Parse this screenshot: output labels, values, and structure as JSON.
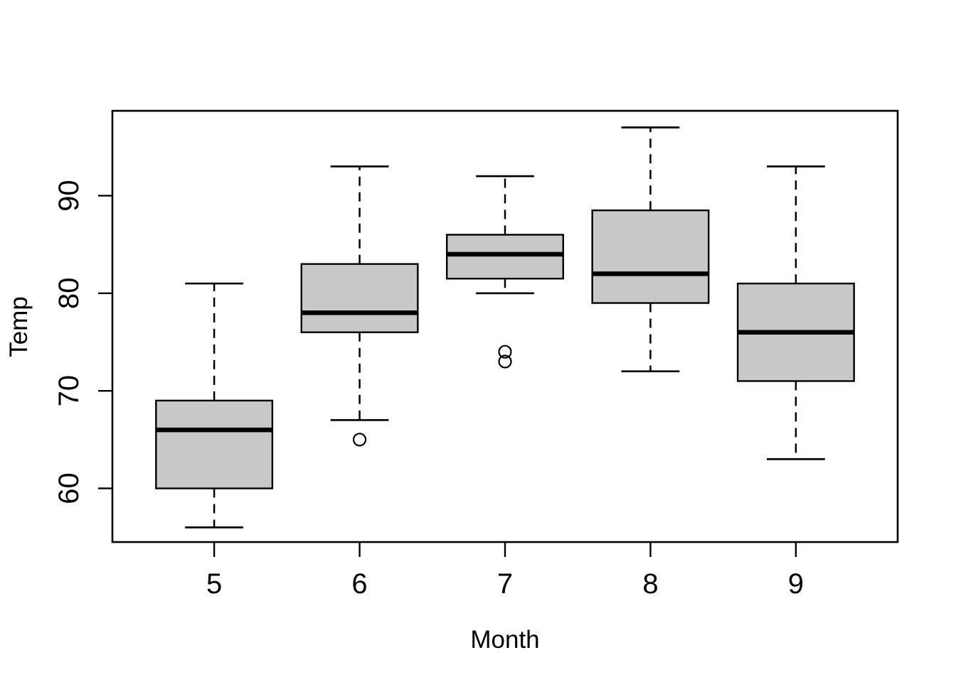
{
  "figure": {
    "background": "#ffffff",
    "box_fill": "#c8c8c8",
    "line_color": "#000000"
  },
  "chart_data": {
    "type": "boxplot",
    "title": "",
    "xlabel": "Month",
    "ylabel": "Temp",
    "categories": [
      "5",
      "6",
      "7",
      "8",
      "9"
    ],
    "y_ticks": [
      60,
      70,
      80,
      90
    ],
    "ylim": [
      54.5,
      98.7
    ],
    "grid": false,
    "legend": false,
    "series": [
      {
        "category": "5",
        "lower_whisker": 56,
        "q1": 60,
        "median": 66,
        "q3": 69,
        "upper_whisker": 81,
        "outliers": []
      },
      {
        "category": "6",
        "lower_whisker": 67,
        "q1": 76,
        "median": 78,
        "q3": 83,
        "upper_whisker": 93,
        "outliers": [
          65
        ]
      },
      {
        "category": "7",
        "lower_whisker": 80,
        "q1": 81.5,
        "median": 84,
        "q3": 86,
        "upper_whisker": 92,
        "outliers": [
          73,
          74
        ]
      },
      {
        "category": "8",
        "lower_whisker": 72,
        "q1": 79,
        "median": 82,
        "q3": 88.5,
        "upper_whisker": 97,
        "outliers": []
      },
      {
        "category": "9",
        "lower_whisker": 63,
        "q1": 71,
        "median": 76,
        "q3": 81,
        "upper_whisker": 93,
        "outliers": []
      }
    ]
  }
}
